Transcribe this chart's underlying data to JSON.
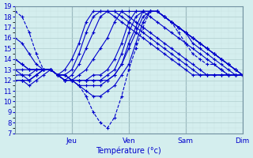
{
  "xlabel": "Température (°c)",
  "bg_color": "#d4eeee",
  "grid_color_major": "#b0cece",
  "grid_color_minor": "#c8e0e0",
  "line_color": "#0000cc",
  "marker": "+",
  "ylim": [
    7,
    19
  ],
  "yticks": [
    7,
    8,
    9,
    10,
    11,
    12,
    13,
    14,
    15,
    16,
    17,
    18,
    19
  ],
  "xlim": [
    0,
    96
  ],
  "day_ticks": [
    24,
    48,
    72,
    96
  ],
  "day_labels": [
    "Jeu",
    "Ven",
    "Sam",
    "Dim"
  ],
  "series": [
    {
      "x": [
        0,
        3,
        6,
        9,
        12,
        15,
        18,
        21,
        24,
        27,
        30,
        33,
        36,
        39,
        42,
        45,
        48,
        51,
        54,
        57,
        60,
        63,
        66,
        69,
        72,
        75,
        78,
        81,
        84,
        87,
        90,
        93,
        96
      ],
      "y": [
        18.5,
        18.0,
        16.5,
        14.5,
        13.0,
        13.0,
        12.5,
        12.5,
        12.0,
        11.5,
        10.5,
        9.0,
        8.0,
        7.5,
        8.5,
        10.5,
        13.0,
        15.0,
        17.0,
        18.5,
        18.5,
        18.0,
        17.5,
        16.5,
        15.5,
        14.5,
        14.0,
        13.5,
        13.5,
        13.0,
        12.5,
        12.5,
        12.5
      ],
      "ls": "--"
    },
    {
      "x": [
        0,
        3,
        6,
        9,
        12,
        15,
        18,
        21,
        24,
        27,
        30,
        33,
        36,
        39,
        42,
        45,
        48,
        51,
        54,
        57,
        60,
        63,
        66,
        69,
        72,
        75,
        78,
        81,
        84,
        87,
        90,
        93,
        96
      ],
      "y": [
        16.0,
        15.5,
        14.5,
        13.5,
        13.0,
        13.0,
        12.5,
        12.5,
        12.0,
        11.5,
        11.0,
        10.5,
        10.5,
        11.0,
        11.5,
        12.5,
        13.5,
        15.5,
        17.5,
        18.5,
        18.5,
        18.0,
        17.5,
        17.0,
        16.5,
        15.5,
        15.0,
        14.5,
        14.0,
        13.5,
        13.0,
        12.5,
        12.5
      ],
      "ls": "-"
    },
    {
      "x": [
        0,
        3,
        6,
        9,
        12,
        15,
        18,
        21,
        24,
        27,
        30,
        33,
        36,
        39,
        42,
        45,
        48,
        51,
        54,
        57,
        60,
        63,
        66,
        69,
        72,
        75,
        78,
        81,
        84,
        87,
        90,
        93,
        96
      ],
      "y": [
        14.0,
        13.5,
        13.0,
        13.0,
        13.0,
        13.0,
        12.5,
        12.5,
        12.0,
        11.5,
        11.5,
        11.5,
        11.5,
        12.0,
        12.5,
        13.5,
        15.0,
        16.5,
        18.0,
        18.5,
        18.5,
        18.0,
        17.5,
        17.0,
        16.5,
        16.0,
        15.5,
        15.0,
        14.5,
        14.0,
        13.5,
        13.0,
        12.5
      ],
      "ls": "-"
    },
    {
      "x": [
        0,
        3,
        6,
        9,
        12,
        15,
        18,
        21,
        24,
        27,
        30,
        33,
        36,
        39,
        42,
        45,
        48,
        51,
        54,
        57,
        60,
        63,
        66,
        69,
        72,
        75,
        78,
        81,
        84,
        87,
        90,
        93,
        96
      ],
      "y": [
        13.0,
        13.0,
        13.0,
        13.0,
        13.0,
        13.0,
        12.5,
        12.0,
        12.0,
        12.0,
        12.0,
        12.0,
        12.0,
        12.0,
        12.5,
        13.5,
        15.5,
        17.0,
        18.5,
        18.5,
        18.5,
        18.0,
        17.5,
        17.0,
        16.5,
        16.0,
        15.5,
        15.0,
        14.5,
        14.0,
        13.5,
        13.0,
        12.5
      ],
      "ls": "-"
    },
    {
      "x": [
        0,
        3,
        6,
        9,
        12,
        15,
        18,
        21,
        24,
        27,
        30,
        33,
        36,
        39,
        42,
        45,
        48,
        51,
        54,
        57,
        60,
        63,
        66,
        69,
        72,
        75,
        78,
        81,
        84,
        87,
        90,
        93,
        96
      ],
      "y": [
        12.5,
        12.5,
        12.5,
        13.0,
        13.0,
        13.0,
        12.5,
        12.0,
        12.0,
        12.0,
        12.0,
        12.0,
        12.0,
        12.5,
        13.0,
        14.5,
        16.5,
        18.0,
        18.5,
        18.5,
        18.5,
        18.0,
        17.5,
        17.0,
        16.5,
        16.0,
        15.5,
        15.0,
        14.5,
        14.0,
        13.5,
        13.0,
        12.5
      ],
      "ls": "-"
    },
    {
      "x": [
        0,
        3,
        6,
        9,
        12,
        15,
        18,
        21,
        24,
        27,
        30,
        33,
        36,
        39,
        42,
        45,
        48,
        51,
        54,
        57,
        60,
        63,
        66,
        69,
        72,
        75,
        78,
        81,
        84,
        87,
        90,
        93,
        96
      ],
      "y": [
        12.0,
        12.0,
        12.0,
        12.5,
        13.0,
        13.0,
        12.5,
        12.0,
        12.0,
        12.0,
        12.0,
        12.5,
        12.5,
        13.0,
        14.0,
        15.5,
        17.5,
        18.5,
        18.5,
        18.5,
        18.5,
        18.0,
        17.5,
        17.0,
        16.5,
        16.0,
        15.5,
        15.0,
        14.5,
        14.0,
        13.5,
        13.0,
        12.5
      ],
      "ls": "-"
    },
    {
      "x": [
        0,
        3,
        6,
        9,
        12,
        15,
        18,
        21,
        24,
        27,
        30,
        33,
        36,
        39,
        42,
        45,
        48,
        51,
        54,
        57,
        60,
        63,
        66,
        69,
        72,
        75,
        78,
        81,
        84,
        87,
        90,
        93,
        96
      ],
      "y": [
        12.0,
        12.0,
        12.0,
        12.5,
        13.0,
        13.0,
        12.5,
        12.0,
        12.0,
        12.5,
        13.0,
        14.0,
        15.0,
        16.0,
        17.5,
        18.5,
        18.5,
        18.5,
        18.5,
        18.0,
        17.5,
        17.0,
        16.5,
        16.0,
        15.5,
        15.0,
        14.5,
        14.0,
        13.5,
        13.0,
        12.5,
        12.5,
        12.5
      ],
      "ls": "-"
    },
    {
      "x": [
        0,
        3,
        6,
        9,
        12,
        15,
        18,
        21,
        24,
        27,
        30,
        33,
        36,
        39,
        42,
        45,
        48,
        51,
        54,
        57,
        60,
        63,
        66,
        69,
        72,
        75,
        78,
        81,
        84,
        87,
        90,
        93,
        96
      ],
      "y": [
        12.0,
        12.0,
        11.5,
        12.0,
        12.5,
        13.0,
        12.5,
        12.0,
        12.5,
        13.5,
        15.0,
        16.5,
        18.0,
        18.5,
        18.5,
        18.5,
        18.0,
        17.5,
        17.0,
        16.5,
        16.0,
        15.5,
        15.0,
        14.5,
        14.0,
        13.5,
        13.0,
        12.5,
        12.5,
        12.5,
        12.5,
        12.5,
        12.5
      ],
      "ls": "-"
    },
    {
      "x": [
        0,
        3,
        6,
        9,
        12,
        15,
        18,
        21,
        24,
        27,
        30,
        33,
        36,
        39,
        42,
        45,
        48,
        51,
        54,
        57,
        60,
        63,
        66,
        69,
        72,
        75,
        78,
        81,
        84,
        87,
        90,
        93,
        96
      ],
      "y": [
        13.0,
        12.5,
        12.0,
        12.5,
        13.0,
        13.0,
        12.5,
        12.5,
        13.0,
        14.5,
        16.5,
        18.0,
        18.5,
        18.5,
        18.5,
        18.0,
        17.5,
        17.0,
        16.5,
        16.0,
        15.5,
        15.0,
        14.5,
        14.0,
        13.5,
        13.0,
        12.5,
        12.5,
        12.5,
        12.5,
        12.5,
        12.5,
        12.5
      ],
      "ls": "-"
    },
    {
      "x": [
        0,
        3,
        6,
        9,
        12,
        15,
        18,
        21,
        24,
        27,
        30,
        33,
        36,
        39,
        42,
        45,
        48,
        51,
        54,
        57,
        60,
        63,
        66,
        69,
        72,
        75,
        78,
        81,
        84,
        87,
        90,
        93,
        96
      ],
      "y": [
        14.0,
        13.5,
        13.0,
        13.0,
        13.0,
        13.0,
        12.5,
        13.0,
        14.0,
        15.5,
        17.5,
        18.5,
        18.5,
        18.5,
        18.0,
        17.5,
        17.0,
        16.5,
        16.0,
        15.5,
        15.0,
        14.5,
        14.0,
        13.5,
        13.0,
        12.5,
        12.5,
        12.5,
        12.5,
        12.5,
        12.5,
        12.5,
        12.5
      ],
      "ls": "-"
    }
  ]
}
